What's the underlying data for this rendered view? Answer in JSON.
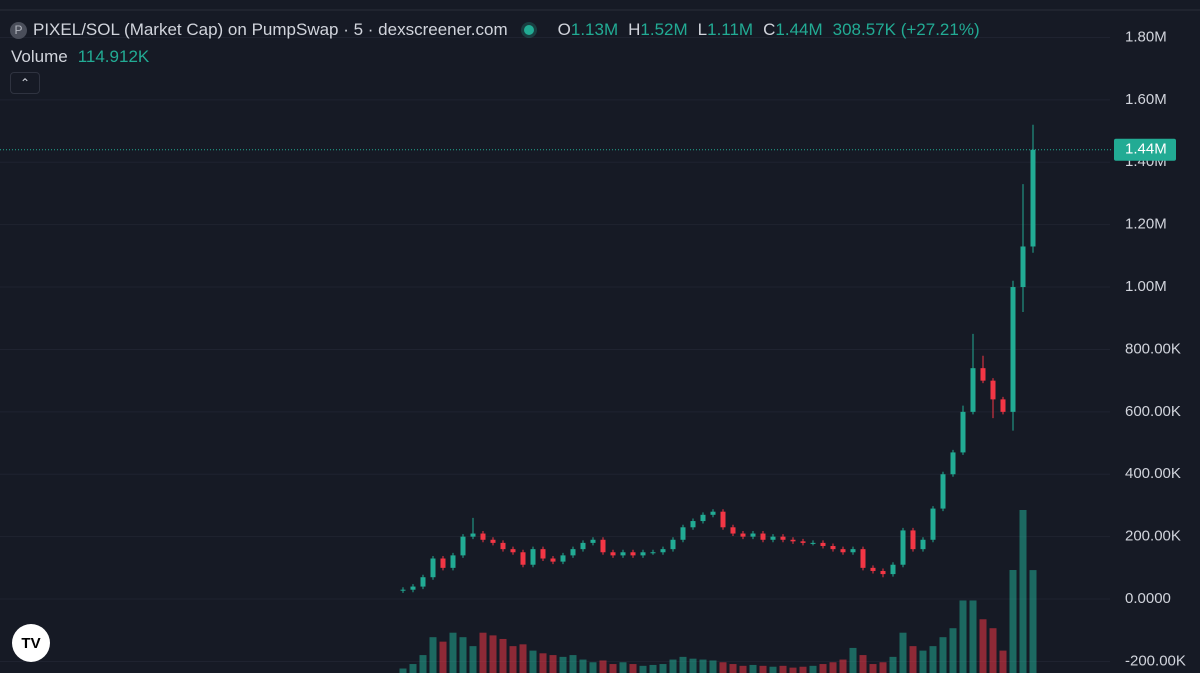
{
  "chart_data": {
    "type": "candlestick",
    "title": "PIXEL/SOL (Market Cap) on PumpSwap · 5 · dexscreener.com",
    "icon_letter": "P",
    "ohlc_legend": [
      {
        "label": "O",
        "text": "1.13M"
      },
      {
        "label": "H",
        "text": "1.52M"
      },
      {
        "label": "L",
        "text": "1.11M"
      },
      {
        "label": "C",
        "text": "1.44M"
      }
    ],
    "change_text": "308.57K (+27.21%)",
    "volume_label": "Volume",
    "volume_text": "114.912K",
    "up_color": "#22ab94",
    "down_color": "#f23645",
    "last_price": {
      "value": 1440000,
      "label": "1.44M"
    },
    "ylim": [
      -237000,
      1920000
    ],
    "yticks": [
      {
        "value": -200000,
        "label": "-200.00K"
      },
      {
        "value": 0,
        "label": "0.0000"
      },
      {
        "value": 200000,
        "label": "200.00K"
      },
      {
        "value": 400000,
        "label": "400.00K"
      },
      {
        "value": 600000,
        "label": "600.00K"
      },
      {
        "value": 800000,
        "label": "800.00K"
      },
      {
        "value": 1000000,
        "label": "1.00M"
      },
      {
        "value": 1200000,
        "label": "1.20M"
      },
      {
        "value": 1400000,
        "label": "1.40M"
      },
      {
        "value": 1600000,
        "label": "1.60M"
      },
      {
        "value": 1800000,
        "label": "1.80M"
      }
    ],
    "grid": true,
    "open": [
      28000,
      30000,
      40000,
      70000,
      130000,
      100000,
      140000,
      200000,
      210000,
      190000,
      180000,
      160000,
      150000,
      110000,
      160000,
      130000,
      120000,
      140000,
      160000,
      180000,
      190000,
      150000,
      140000,
      150000,
      140000,
      150000,
      150000,
      160000,
      190000,
      230000,
      250000,
      270000,
      280000,
      230000,
      210000,
      200000,
      210000,
      190000,
      200000,
      190000,
      185000,
      180000,
      180000,
      170000,
      160000,
      150000,
      160000,
      100000,
      90000,
      80000,
      110000,
      220000,
      160000,
      190000,
      290000,
      400000,
      470000,
      600000,
      740000,
      700000,
      640000,
      600000,
      1000000,
      1130000
    ],
    "high": [
      38000,
      48000,
      78000,
      138000,
      138000,
      148000,
      208000,
      260000,
      218000,
      198000,
      188000,
      168000,
      158000,
      168000,
      168000,
      138000,
      148000,
      168000,
      188000,
      198000,
      198000,
      158000,
      158000,
      158000,
      158000,
      158000,
      168000,
      198000,
      238000,
      258000,
      278000,
      288000,
      288000,
      238000,
      218000,
      218000,
      218000,
      208000,
      208000,
      198000,
      193000,
      188000,
      188000,
      178000,
      168000,
      168000,
      168000,
      108000,
      98000,
      118000,
      228000,
      228000,
      198000,
      298000,
      408000,
      478000,
      620000,
      850000,
      780000,
      708000,
      648000,
      1020000,
      1330000,
      1520000
    ],
    "low": [
      20000,
      22000,
      32000,
      62000,
      92000,
      92000,
      132000,
      192000,
      182000,
      172000,
      152000,
      142000,
      102000,
      102000,
      122000,
      112000,
      112000,
      132000,
      152000,
      172000,
      142000,
      132000,
      132000,
      132000,
      132000,
      142000,
      142000,
      152000,
      182000,
      222000,
      242000,
      262000,
      222000,
      202000,
      192000,
      192000,
      182000,
      182000,
      182000,
      177000,
      172000,
      172000,
      162000,
      152000,
      142000,
      142000,
      92000,
      82000,
      70000,
      72000,
      102000,
      152000,
      152000,
      182000,
      282000,
      392000,
      462000,
      592000,
      692000,
      580000,
      592000,
      540000,
      920000,
      1110000
    ],
    "close": [
      30000,
      40000,
      70000,
      130000,
      100000,
      140000,
      200000,
      210000,
      190000,
      180000,
      160000,
      150000,
      110000,
      160000,
      130000,
      120000,
      140000,
      160000,
      180000,
      190000,
      150000,
      140000,
      150000,
      140000,
      150000,
      150000,
      160000,
      190000,
      230000,
      250000,
      270000,
      280000,
      230000,
      210000,
      200000,
      210000,
      190000,
      200000,
      190000,
      185000,
      180000,
      180000,
      170000,
      160000,
      150000,
      160000,
      100000,
      90000,
      80000,
      110000,
      220000,
      160000,
      190000,
      290000,
      400000,
      470000,
      600000,
      740000,
      700000,
      640000,
      600000,
      1000000,
      1130000,
      1440000
    ],
    "volume": [
      5000,
      10000,
      20000,
      40000,
      35000,
      45000,
      40000,
      30000,
      45000,
      42000,
      38000,
      30000,
      32000,
      25000,
      22000,
      20000,
      18000,
      20000,
      15000,
      12000,
      14000,
      10000,
      12000,
      10000,
      8000,
      9000,
      10000,
      15000,
      18000,
      16000,
      15000,
      14000,
      12000,
      10000,
      8000,
      9000,
      8000,
      7000,
      8000,
      6000,
      7000,
      8000,
      10000,
      12000,
      15000,
      28000,
      20000,
      10000,
      12000,
      18000,
      45000,
      30000,
      25000,
      30000,
      40000,
      50000,
      81000,
      81000,
      60000,
      50000,
      25000,
      115000,
      182000,
      114912
    ]
  }
}
